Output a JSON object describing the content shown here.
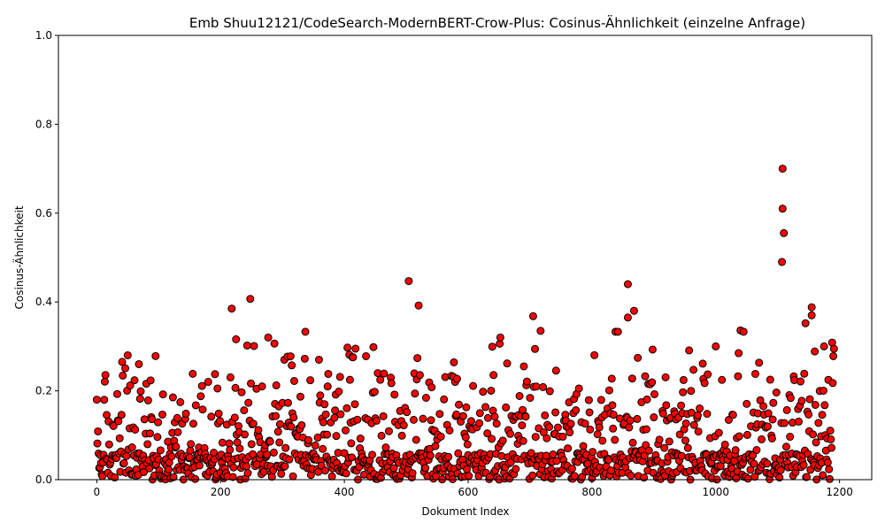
{
  "chart_data": {
    "type": "scatter",
    "title": "Emb Shuu12121/CodeSearch-ModernBERT-Crow-Plus: Cosinus-Ähnlichkeit (einzelne Anfrage)",
    "xlabel": "Dokument Index",
    "ylabel": "Cosinus-Ähnlichkeit",
    "xlim": [
      -62,
      1252
    ],
    "ylim": [
      0,
      1
    ],
    "xticks": [
      "0",
      "200",
      "400",
      "600",
      "800",
      "1000",
      "1200"
    ],
    "yticks": [
      "0.0",
      "0.2",
      "0.4",
      "0.6",
      "0.8",
      "1.0"
    ],
    "grid": false,
    "marker": {
      "face_color": "#ff0000",
      "edge_color": "#000000"
    },
    "n_points": 1192,
    "max_value": 0.7,
    "notable_points": [
      {
        "x": 1108,
        "y": 0.7
      },
      {
        "x": 1108,
        "y": 0.61
      },
      {
        "x": 1110,
        "y": 0.555
      },
      {
        "x": 1107,
        "y": 0.49
      },
      {
        "x": 504,
        "y": 0.447
      },
      {
        "x": 858,
        "y": 0.44
      },
      {
        "x": 248,
        "y": 0.407
      },
      {
        "x": 520,
        "y": 0.392
      },
      {
        "x": 1155,
        "y": 0.388
      },
      {
        "x": 218,
        "y": 0.385
      },
      {
        "x": 868,
        "y": 0.38
      },
      {
        "x": 1155,
        "y": 0.37
      },
      {
        "x": 705,
        "y": 0.368
      },
      {
        "x": 858,
        "y": 0.365
      },
      {
        "x": 1145,
        "y": 0.352
      },
      {
        "x": 1040,
        "y": 0.336
      },
      {
        "x": 717,
        "y": 0.335
      },
      {
        "x": 1045,
        "y": 0.333
      },
      {
        "x": 337,
        "y": 0.333
      },
      {
        "x": 838,
        "y": 0.333
      },
      {
        "x": 842,
        "y": 0.333
      },
      {
        "x": 652,
        "y": 0.32
      },
      {
        "x": 277,
        "y": 0.32
      },
      {
        "x": 225,
        "y": 0.316
      },
      {
        "x": 1000,
        "y": 0.3
      },
      {
        "x": 1175,
        "y": 0.3
      },
      {
        "x": 1190,
        "y": 0.278
      },
      {
        "x": 435,
        "y": 0.278
      },
      {
        "x": 50,
        "y": 0.28
      },
      {
        "x": 68,
        "y": 0.26
      },
      {
        "x": 180,
        "y": 0.22
      }
    ]
  }
}
